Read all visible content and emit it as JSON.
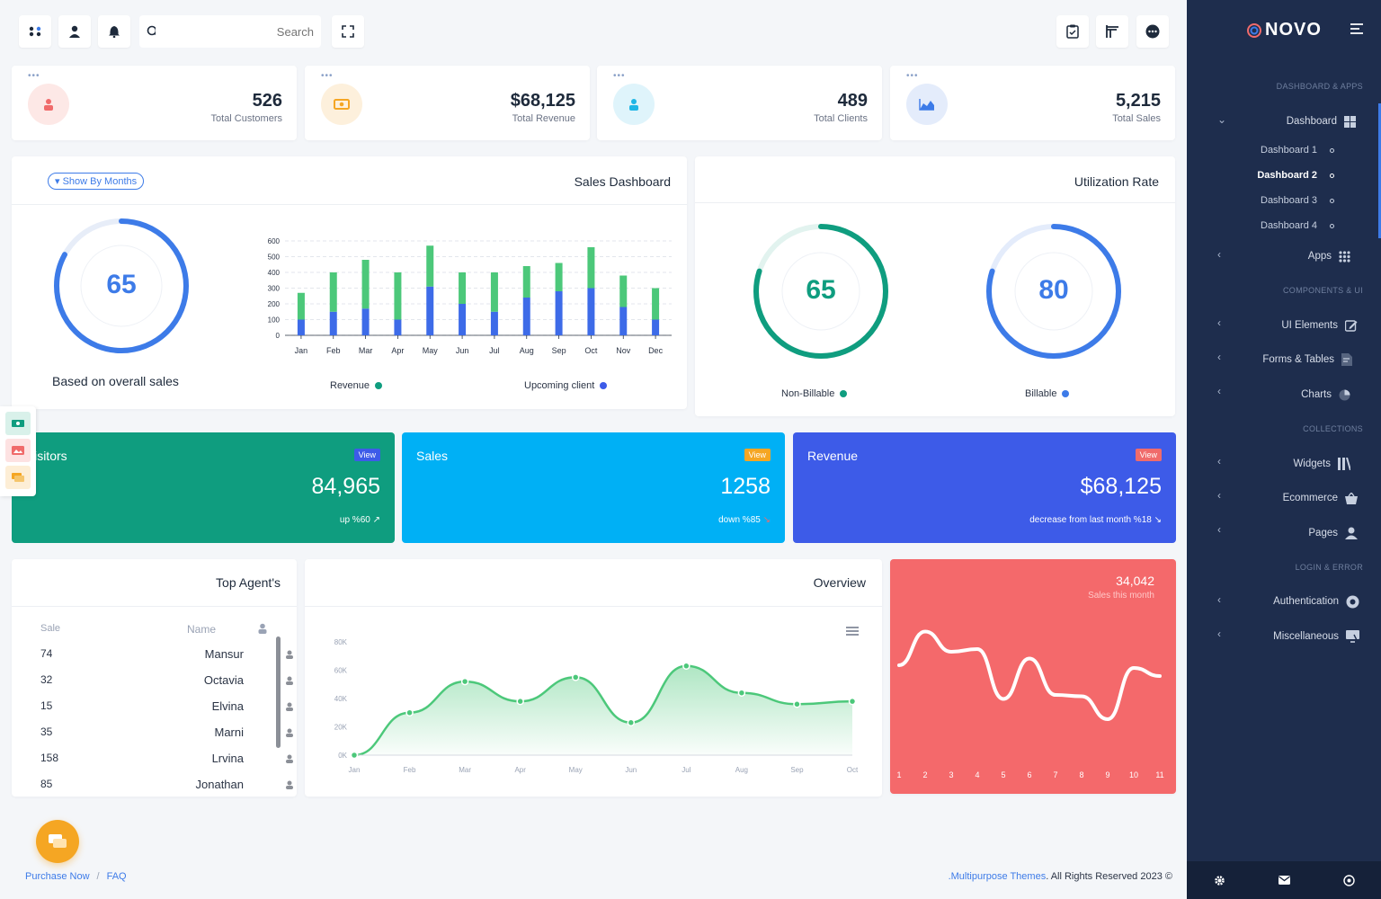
{
  "topbar": {
    "search_placeholder": "Search"
  },
  "stats": [
    {
      "value": "526",
      "label": "Total Customers",
      "color": "#f06b6b",
      "bg": "#fde8e6",
      "icon": "user-icon"
    },
    {
      "value": "$68,125",
      "label": "Total Revenue",
      "color": "#f5a623",
      "bg": "#fdf0dc",
      "icon": "money-icon"
    },
    {
      "value": "489",
      "label": "Total Clients",
      "color": "#1fb6e6",
      "bg": "#dff4fb",
      "icon": "user-icon"
    },
    {
      "value": "5,215",
      "label": "Total Sales",
      "color": "#3d7be8",
      "bg": "#e4ecfb",
      "icon": "area-chart-icon"
    }
  ],
  "sales_dashboard": {
    "title": "Sales Dashboard",
    "filter_label": "Show By Months",
    "gauge_value": "65",
    "gauge_caption": "Based on overall sales",
    "gauge_level": 0.83,
    "legend": [
      "Revenue",
      "Upcoming client"
    ]
  },
  "utilization": {
    "title": "Utilization Rate",
    "gauges": [
      {
        "value": "65",
        "label": "Non-Billable",
        "color": "#0f9d7f",
        "level": 0.8
      },
      {
        "value": "80",
        "label": "Billable",
        "color": "#3d7be8",
        "level": 0.8
      }
    ]
  },
  "color_cards": [
    {
      "title": "Visitors",
      "badge": "View",
      "value": "84,965",
      "sub": "up %60",
      "bg": "#0f9d7f",
      "badge_bg": "#3d5be8"
    },
    {
      "title": "Sales",
      "badge": "View",
      "value": "1258",
      "sub": "down %85",
      "bg": "#00b0f5",
      "badge_bg": "#f5a623"
    },
    {
      "title": "Revenue",
      "badge": "View",
      "value": "$68,125",
      "sub": "decrease from last month %18",
      "bg": "#3d5be8",
      "badge_bg": "#f06b6b"
    }
  ],
  "top_agents": {
    "title": "Top Agent's",
    "col_sale": "Sale",
    "col_name": "Name",
    "rows": [
      {
        "sale": "74",
        "name": "Mansur"
      },
      {
        "sale": "32",
        "name": "Octavia"
      },
      {
        "sale": "15",
        "name": "Elvina"
      },
      {
        "sale": "35",
        "name": "Marni"
      },
      {
        "sale": "158",
        "name": "Lrvina"
      },
      {
        "sale": "85",
        "name": "Jonathan"
      }
    ]
  },
  "overview": {
    "title": "Overview"
  },
  "sales_month": {
    "value": "34,042",
    "label": "Sales this month",
    "bg": "#f4696b"
  },
  "footer": {
    "purchase": "Purchase Now",
    "separator": "/",
    "faq": "FAQ",
    "brand": ".Multipurpose Themes",
    "rights": ". All Rights Reserved 2023 ©"
  },
  "sidebar": {
    "logo": "NOVO",
    "sections": {
      "dash": "DASHBOARD & APPS",
      "comp": "COMPONENTS & UI",
      "coll": "COLLECTIONS",
      "login": "LOGIN & ERROR"
    },
    "dashboard": "Dashboard",
    "sub_items": [
      "Dashboard 1",
      "Dashboard 2",
      "Dashboard 3",
      "Dashboard 4"
    ],
    "apps": "Apps",
    "ui_elements": "UI Elements",
    "forms": "Forms & Tables",
    "charts": "Charts",
    "widgets": "Widgets",
    "ecommerce": "Ecommerce",
    "pages": "Pages",
    "auth": "Authentication",
    "misc": "Miscellaneous"
  },
  "chart_data": [
    {
      "type": "bar",
      "categories": [
        "Jan",
        "Feb",
        "Mar",
        "Apr",
        "May",
        "Jun",
        "Jul",
        "Aug",
        "Sep",
        "Oct",
        "Nov",
        "Dec"
      ],
      "series": [
        {
          "name": "Upcoming client",
          "values": [
            100,
            150,
            170,
            100,
            310,
            200,
            150,
            240,
            280,
            300,
            180,
            100
          ],
          "color": "#3d6be8"
        },
        {
          "name": "Revenue",
          "values": [
            170,
            250,
            310,
            300,
            260,
            200,
            250,
            200,
            180,
            260,
            200,
            200
          ],
          "color": "#4cc87a"
        }
      ],
      "stacked": true,
      "ylim": [
        0,
        600
      ],
      "yticks": [
        0,
        100,
        200,
        300,
        400,
        500,
        600
      ],
      "grid": true
    },
    {
      "type": "area",
      "x": [
        "Jan",
        "Feb",
        "Mar",
        "Apr",
        "May",
        "Jun",
        "Jul",
        "Aug",
        "Sep",
        "Oct"
      ],
      "values": [
        0,
        30000,
        52000,
        38000,
        55000,
        23000,
        63000,
        44000,
        36000,
        38000
      ],
      "ylim": [
        0,
        80000
      ],
      "yticks": [
        "0K",
        "20K",
        "40K",
        "60K",
        "80K"
      ],
      "color": "#4cc87a"
    },
    {
      "type": "line",
      "x": [
        "1",
        "2",
        "3",
        "4",
        "5",
        "6",
        "7",
        "8",
        "9",
        "10",
        "11"
      ],
      "values": [
        60,
        85,
        70,
        72,
        35,
        65,
        38,
        37,
        20,
        58,
        52
      ],
      "color": "#ffffff"
    }
  ]
}
